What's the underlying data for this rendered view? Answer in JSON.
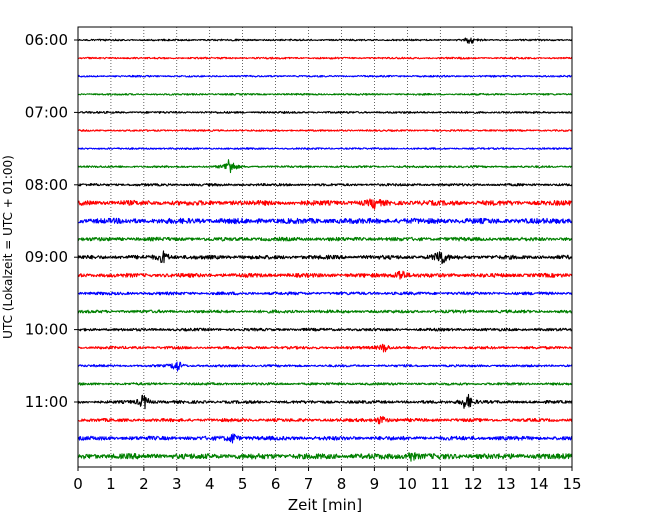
{
  "chart_data": {
    "type": "line",
    "xlabel": "Zeit  [min]",
    "ylabel": "UTC (Lokalzeit = UTC + 01:00)",
    "xlim": [
      0,
      15
    ],
    "x_ticks": [
      0,
      1,
      2,
      3,
      4,
      5,
      6,
      7,
      8,
      9,
      10,
      11,
      12,
      13,
      14,
      15
    ],
    "y_tick_labels": [
      "06:00",
      "07:00",
      "08:00",
      "09:00",
      "10:00",
      "11:00"
    ],
    "grid": "vertical dotted lines at each minute",
    "color_cycle": [
      "#000000",
      "#ff0000",
      "#0000ff",
      "#008000"
    ],
    "trace_start_times": [
      "06:00",
      "06:15",
      "06:30",
      "06:45",
      "07:00",
      "07:15",
      "07:30",
      "07:45",
      "08:00",
      "08:15",
      "08:30",
      "08:45",
      "09:00",
      "09:15",
      "09:30",
      "09:45",
      "10:00",
      "10:15",
      "10:30",
      "10:45",
      "11:00",
      "11:15",
      "11:30",
      "11:45"
    ],
    "trace_noise_level": [
      0.7,
      0.7,
      0.7,
      0.7,
      0.8,
      0.7,
      0.7,
      0.8,
      1.0,
      2.0,
      2.2,
      1.5,
      1.6,
      1.6,
      1.2,
      1.2,
      1.1,
      1.1,
      0.9,
      1.0,
      1.2,
      1.3,
      1.6,
      2.2
    ],
    "events": [
      {
        "trace": "06:00",
        "minute": 11.9,
        "amplitude": 2.5
      },
      {
        "trace": "07:45",
        "minute": 4.6,
        "amplitude": 6
      },
      {
        "trace": "08:15",
        "minute": 9.0,
        "amplitude": 3
      },
      {
        "trace": "09:00",
        "minute": 2.6,
        "amplitude": 4
      },
      {
        "trace": "09:00",
        "minute": 11.0,
        "amplitude": 6
      },
      {
        "trace": "09:15",
        "minute": 9.8,
        "amplitude": 4
      },
      {
        "trace": "10:15",
        "minute": 9.3,
        "amplitude": 3
      },
      {
        "trace": "10:30",
        "minute": 3.0,
        "amplitude": 4
      },
      {
        "trace": "11:00",
        "minute": 2.0,
        "amplitude": 5
      },
      {
        "trace": "11:00",
        "minute": 11.8,
        "amplitude": 6
      },
      {
        "trace": "11:15",
        "minute": 9.2,
        "amplitude": 3
      },
      {
        "trace": "11:30",
        "minute": 4.7,
        "amplitude": 3
      },
      {
        "trace": "11:45",
        "minute": 10.1,
        "amplitude": 3
      }
    ]
  }
}
